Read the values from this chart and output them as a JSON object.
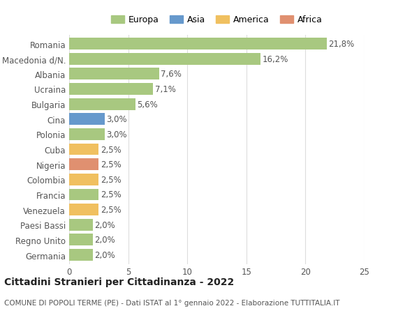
{
  "categories": [
    "Romania",
    "Macedonia d/N.",
    "Albania",
    "Ucraina",
    "Bulgaria",
    "Cina",
    "Polonia",
    "Cuba",
    "Nigeria",
    "Colombia",
    "Francia",
    "Venezuela",
    "Paesi Bassi",
    "Regno Unito",
    "Germania"
  ],
  "values": [
    21.8,
    16.2,
    7.6,
    7.1,
    5.6,
    3.0,
    3.0,
    2.5,
    2.5,
    2.5,
    2.5,
    2.5,
    2.0,
    2.0,
    2.0
  ],
  "labels": [
    "21,8%",
    "16,2%",
    "7,6%",
    "7,1%",
    "5,6%",
    "3,0%",
    "3,0%",
    "2,5%",
    "2,5%",
    "2,5%",
    "2,5%",
    "2,5%",
    "2,0%",
    "2,0%",
    "2,0%"
  ],
  "continents": [
    "Europa",
    "Europa",
    "Europa",
    "Europa",
    "Europa",
    "Asia",
    "Europa",
    "America",
    "Africa",
    "America",
    "Europa",
    "America",
    "Europa",
    "Europa",
    "Europa"
  ],
  "continent_colors": {
    "Europa": "#a8c880",
    "Asia": "#6699cc",
    "America": "#f0c060",
    "Africa": "#e09070"
  },
  "legend_order": [
    "Europa",
    "Asia",
    "America",
    "Africa"
  ],
  "title": "Cittadini Stranieri per Cittadinanza - 2022",
  "subtitle": "COMUNE DI POPOLI TERME (PE) - Dati ISTAT al 1° gennaio 2022 - Elaborazione TUTTITALIA.IT",
  "xlim": [
    0,
    25
  ],
  "xticks": [
    0,
    5,
    10,
    15,
    20,
    25
  ],
  "background_color": "#ffffff",
  "grid_color": "#dddddd",
  "bar_height": 0.78,
  "title_fontsize": 10,
  "subtitle_fontsize": 7.5,
  "tick_fontsize": 8.5,
  "label_fontsize": 8.5,
  "legend_fontsize": 9
}
